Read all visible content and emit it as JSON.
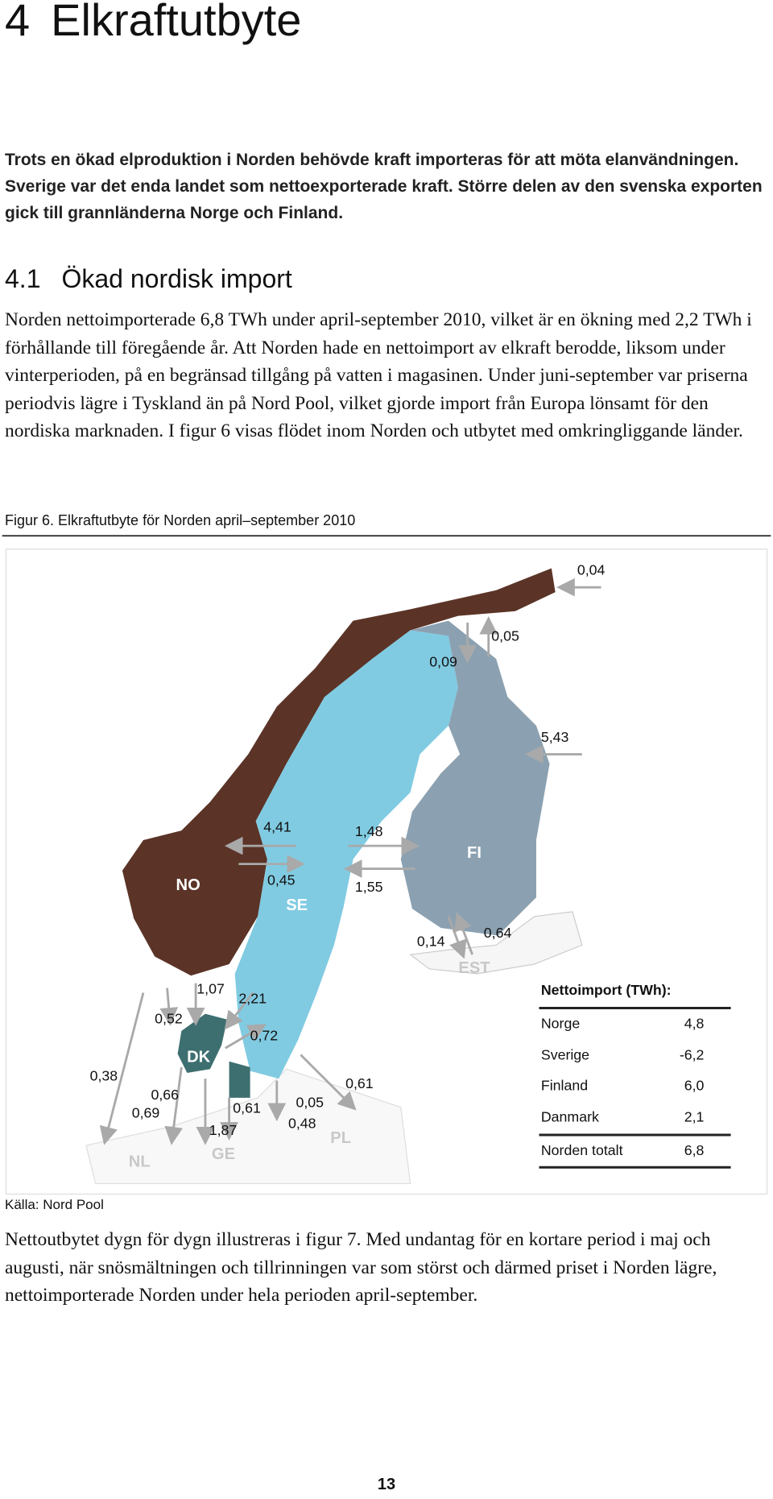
{
  "header": {
    "number": "4",
    "title": "Elkraftutbyte"
  },
  "intro": "Trots en ökad elproduktion i Norden behövde kraft importeras för att möta elanvändningen. Sverige var det enda landet som nettoexporterade kraft. Större delen av den svenska exporten gick till grannländerna Norge och Finland.",
  "section": {
    "number": "4.1",
    "title": "Ökad nordisk import",
    "paragraph": "Norden nettoimporterade 6,8 TWh under april-september 2010, vilket är en ökning med 2,2 TWh i förhållande till föregående år. Att Norden hade en nettoimport av elkraft berodde, liksom under vinterperioden, på en begränsad tillgång på vatten i magasinen. Under juni-september var priserna periodvis lägre i Tyskland än på Nord Pool, vilket gjorde import från Europa lönsamt för den nordiska marknaden. I figur 6 visas flödet inom Norden och utbytet med omkringliggande länder."
  },
  "figure": {
    "caption": "Figur 6. Elkraftutbyte för Norden april–september 2010",
    "countries": [
      "NO",
      "SE",
      "FI",
      "DK",
      "EST",
      "NL",
      "GE",
      "PL"
    ],
    "flows": [
      "0,04",
      "0,05",
      "0,09",
      "5,43",
      "4,41",
      "1,48",
      "0,45",
      "1,55",
      "0,14",
      "0,64",
      "1,07",
      "2,21",
      "0,52",
      "0,72",
      "0,38",
      "0,66",
      "0,61",
      "0,69",
      "0,05",
      "0,48",
      "0,61",
      "1,87"
    ],
    "table": {
      "title": "Nettoimport (TWh):",
      "rows": [
        [
          "Norge",
          "4,8"
        ],
        [
          "Sverige",
          "-6,2"
        ],
        [
          "Finland",
          "6,0"
        ],
        [
          "Danmark",
          "2,1"
        ],
        [
          "Norden totalt",
          "6,8"
        ]
      ]
    },
    "source": "Källa: Nord Pool"
  },
  "closing": "Nettoutbytet dygn för dygn illustreras i figur 7. Med undantag för en kortare period i maj och augusti, när snösmältningen och tillrinningen var som störst och därmed priset i Norden lägre, nettoimporterade Norden under hela perioden april-september.",
  "page_number": "13"
}
